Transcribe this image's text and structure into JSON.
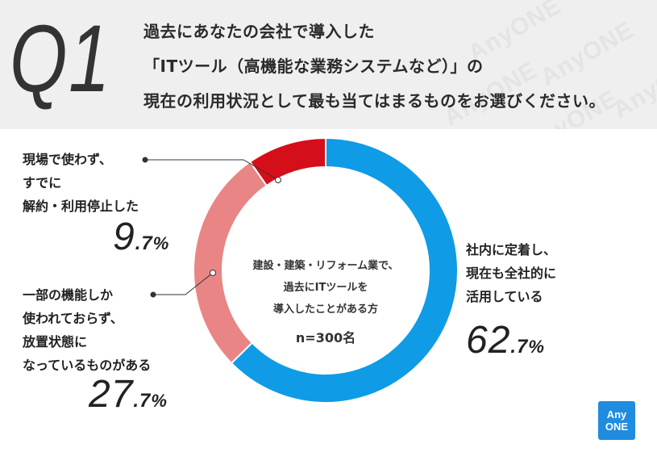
{
  "header": {
    "q_mark": "Q1",
    "question_lines": [
      "過去にあなたの会社で導入した",
      "「ITツール（高機能な業務システムなど）」の",
      "現在の利用状況として最も当てはまるものをお選びください。"
    ],
    "watermark": "AnyONE"
  },
  "center": {
    "lines": [
      "建設・建築・リフォーム業で、",
      "過去にITツールを",
      "導入したことがある方"
    ],
    "n": "n=300名"
  },
  "labels": {
    "used": {
      "lines": [
        "社内に定着し、",
        "現在も全社的に",
        "活用している"
      ],
      "pct_int": "62",
      "pct_dec": ".7",
      "pct_sign": "%"
    },
    "partial": {
      "lines": [
        "一部の機能しか",
        "使われておらず、",
        "放置状態に",
        "なっているものがある"
      ],
      "pct_int": "27",
      "pct_dec": ".7",
      "pct_sign": "%"
    },
    "unused": {
      "lines": [
        "現場で使わず、",
        "すでに",
        "解約・利用停止した"
      ],
      "pct_int": "9",
      "pct_dec": ".7",
      "pct_sign": "%"
    }
  },
  "logo": {
    "line1": "Any",
    "line2": "ONE"
  },
  "chart_data": {
    "type": "pie",
    "donut": true,
    "start_angle_deg": 0,
    "direction": "clockwise",
    "slices": [
      {
        "label": "社内に定着し、現在も全社的に活用している",
        "value": 62.7,
        "color": "#0f9be6"
      },
      {
        "label": "一部の機能しか使われておらず、放置状態になっているものがある",
        "value": 27.7,
        "color": "#e98585"
      },
      {
        "label": "現場で使わず、すでに解約・利用停止した",
        "value": 9.7,
        "color": "#d40f1a"
      }
    ]
  }
}
